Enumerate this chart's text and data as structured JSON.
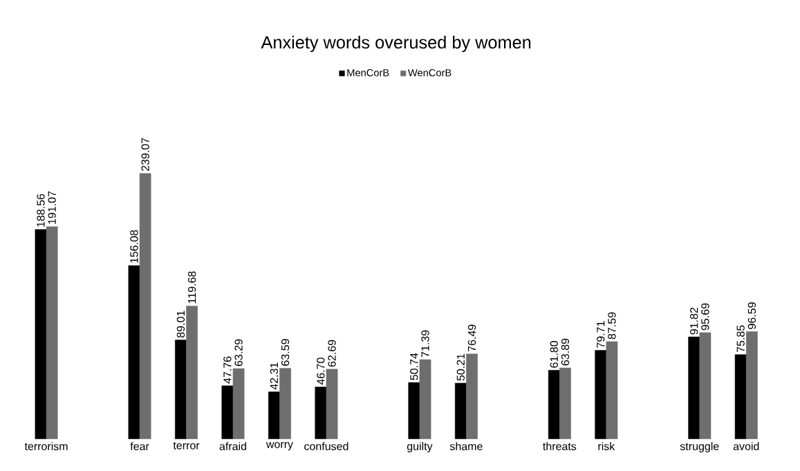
{
  "chart_data": {
    "type": "bar",
    "title": "Anxiety words overused by women",
    "categories": [
      "terrorism",
      null,
      "fear",
      "terror",
      "afraid",
      "worry",
      "confused",
      null,
      "guilty",
      "shame",
      null,
      "threats",
      "risk",
      null,
      "struggle",
      "avoid"
    ],
    "series": [
      {
        "name": "MenCorB",
        "color": "#000000",
        "values": [
          188.56,
          null,
          156.08,
          89.01,
          47.76,
          42.31,
          46.7,
          null,
          50.74,
          50.21,
          null,
          61.8,
          79.71,
          null,
          91.82,
          75.85
        ],
        "value_labels": [
          "188.56",
          null,
          "156.08",
          "89.01",
          "47.76",
          "42.31",
          "46.70",
          null,
          "50.74",
          "50.21",
          null,
          "61.80",
          "79.71",
          null,
          "91.82",
          "75.85"
        ]
      },
      {
        "name": "WenCorB",
        "color": "#6e6e6e",
        "values": [
          191.07,
          null,
          239.07,
          119.68,
          63.29,
          63.59,
          62.69,
          null,
          71.39,
          76.49,
          null,
          63.89,
          87.59,
          null,
          95.69,
          96.59
        ],
        "value_labels": [
          "191.07",
          null,
          "239.07",
          "119.68",
          "63.29",
          "63.59",
          "62.69",
          null,
          "71.39",
          "76.49",
          null,
          "63.89",
          "87.59",
          null,
          "95.69",
          "96.59"
        ]
      }
    ],
    "legend": "top"
  }
}
